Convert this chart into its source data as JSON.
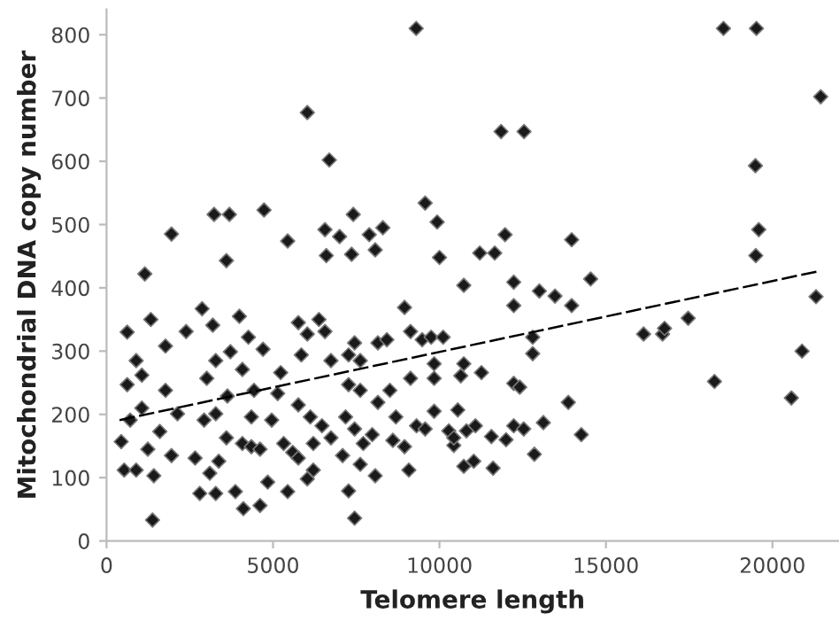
{
  "chart_data": {
    "type": "scatter",
    "xlabel": "Telomere length",
    "ylabel": "Mitochondrial DNA copy number",
    "xlim": [
      0,
      22000
    ],
    "ylim": [
      0,
      840
    ],
    "xticks": [
      0,
      5000,
      10000,
      15000,
      20000
    ],
    "yticks": [
      0,
      100,
      200,
      300,
      400,
      500,
      600,
      700,
      800
    ],
    "grid": false,
    "legend": false,
    "series": [
      {
        "color": "#1a1a1a",
        "marker": "diamond",
        "x": [
          9300,
          6030,
          6690,
          9570,
          9930,
          10000,
          4730,
          3230,
          3690,
          1950,
          1150,
          3600,
          5440,
          6560,
          7410,
          8300,
          7890,
          7000,
          8070,
          7360,
          6600,
          18530,
          19520,
          21450,
          19490,
          11850,
          12540,
          19590,
          19500,
          11970,
          13970,
          11210,
          11660,
          10730,
          12230,
          13000,
          13470,
          14540,
          21310,
          12230,
          13970,
          16130,
          16700,
          16760,
          17470,
          18260,
          20570,
          20890,
          12800,
          12800,
          13870,
          14260,
          12850,
          13120,
          11610,
          10730,
          11030,
          10430,
          10280,
          10810,
          11080,
          11560,
          12000,
          12230,
          12530,
          10550,
          11260,
          10640,
          10730,
          12230,
          12410,
          1380,
          7450,
          620,
          1330,
          1770,
          2390,
          2870,
          440,
          530,
          890,
          1420,
          710,
          1060,
          1600,
          1240,
          1950,
          1770,
          2130,
          620,
          1060,
          890,
          2660,
          2800,
          3280,
          3870,
          4110,
          4610,
          4840,
          5440,
          3100,
          3370,
          3600,
          4080,
          4350,
          4610,
          2930,
          3280,
          3630,
          3010,
          3280,
          3190,
          3990,
          4260,
          4700,
          4080,
          3720,
          4430,
          5140,
          4960,
          4350,
          5320,
          5590,
          5760,
          6030,
          6210,
          6740,
          6210,
          5760,
          6120,
          6470,
          5230,
          5850,
          6030,
          5760,
          6380,
          6560,
          6740,
          7270,
          7620,
          7270,
          7620,
          8150,
          7180,
          7450,
          7710,
          7980,
          7090,
          7620,
          8070,
          7270,
          8600,
          8950,
          9080,
          8510,
          8690,
          9130,
          9310,
          9570,
          9480,
          9750,
          10110,
          8150,
          8420,
          7450,
          8950,
          9130,
          9840,
          9840,
          9840,
          10430
        ],
        "values": [
          810,
          677,
          602,
          534,
          504,
          448,
          523,
          516,
          516,
          485,
          422,
          443,
          474,
          492,
          516,
          495,
          484,
          481,
          460,
          453,
          451,
          810,
          810,
          702,
          593,
          647,
          647,
          492,
          451,
          484,
          476,
          455,
          455,
          404,
          409,
          395,
          387,
          414,
          386,
          372,
          372,
          327,
          327,
          336,
          352,
          252,
          226,
          300,
          322,
          296,
          219,
          168,
          137,
          187,
          115,
          118,
          126,
          151,
          174,
          174,
          182,
          165,
          160,
          182,
          177,
          207,
          266,
          261,
          280,
          249,
          243,
          33,
          36,
          330,
          350,
          308,
          331,
          367,
          157,
          112,
          112,
          103,
          191,
          210,
          173,
          145,
          135,
          238,
          201,
          247,
          262,
          285,
          131,
          75,
          75,
          78,
          51,
          56,
          93,
          78,
          107,
          126,
          163,
          154,
          149,
          145,
          191,
          201,
          229,
          257,
          285,
          341,
          355,
          322,
          303,
          271,
          299,
          238,
          233,
          191,
          196,
          154,
          140,
          131,
          98,
          154,
          163,
          112,
          215,
          196,
          182,
          266,
          294,
          327,
          345,
          350,
          331,
          285,
          294,
          285,
          247,
          238,
          219,
          196,
          177,
          154,
          168,
          135,
          121,
          103,
          79,
          159,
          149,
          112,
          238,
          196,
          257,
          182,
          177,
          318,
          322,
          322,
          313,
          318,
          313,
          369,
          331,
          257,
          205,
          280,
          163
        ]
      },
      {
        "type": "line",
        "color": "#000000",
        "line_style": "dashed",
        "marker": "none",
        "x": [
          390,
          21450
        ],
        "values": [
          191,
          427
        ]
      }
    ]
  }
}
